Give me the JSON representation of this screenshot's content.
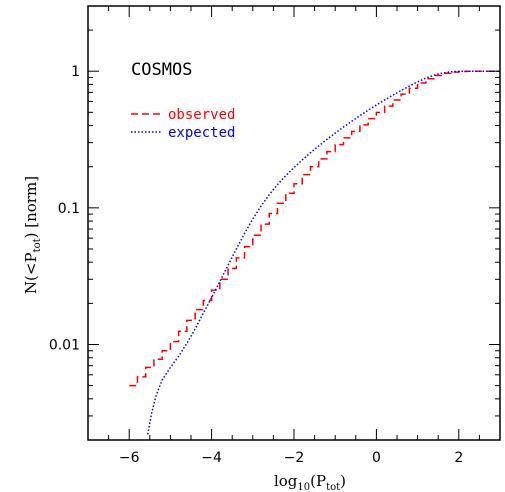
{
  "chart_data": {
    "type": "line",
    "title": "",
    "annotation": "COSMOS",
    "xlabel": {
      "main": "log",
      "sub": "10",
      "open": "(P",
      "sub2": "tot",
      "close": ")"
    },
    "ylabel": {
      "main": "N(<P",
      "sub": "tot",
      "close": ") [norm]"
    },
    "xlim": [
      -7,
      3
    ],
    "ylim": [
      0.002,
      3
    ],
    "yscale": "log",
    "xticks": [
      -6,
      -4,
      -2,
      0,
      2
    ],
    "xtick_labels": [
      "−6",
      "−4",
      "−2",
      "0",
      "2"
    ],
    "yticks": [
      0.01,
      0.1,
      1
    ],
    "ytick_labels": [
      "0.01",
      "0.1",
      "1"
    ],
    "legend_position": "upper-left",
    "series": [
      {
        "name": "observed",
        "color": "#ff0000",
        "style": "dashed-step",
        "x": [
          -6.0,
          -5.8,
          -5.6,
          -5.4,
          -5.2,
          -5.0,
          -4.8,
          -4.6,
          -4.4,
          -4.2,
          -4.0,
          -3.8,
          -3.6,
          -3.4,
          -3.2,
          -3.0,
          -2.8,
          -2.6,
          -2.4,
          -2.2,
          -2.0,
          -1.8,
          -1.6,
          -1.4,
          -1.2,
          -1.0,
          -0.8,
          -0.6,
          -0.4,
          -0.2,
          0.0,
          0.2,
          0.4,
          0.6,
          0.8,
          1.0,
          1.2,
          1.4,
          1.6,
          1.8,
          2.0,
          2.2,
          2.4,
          2.6,
          2.8,
          3.0
        ],
        "y": [
          0.005,
          0.0058,
          0.0068,
          0.0078,
          0.009,
          0.0105,
          0.0125,
          0.015,
          0.018,
          0.021,
          0.025,
          0.03,
          0.036,
          0.043,
          0.052,
          0.063,
          0.076,
          0.091,
          0.108,
          0.128,
          0.15,
          0.175,
          0.2,
          0.228,
          0.258,
          0.29,
          0.325,
          0.363,
          0.405,
          0.45,
          0.5,
          0.555,
          0.615,
          0.68,
          0.75,
          0.82,
          0.88,
          0.93,
          0.965,
          0.985,
          0.995,
          1.0,
          1.0,
          1.0,
          1.0,
          1.0
        ]
      },
      {
        "name": "expected",
        "color": "#0000ff",
        "style": "dotted",
        "x": [
          -5.55,
          -5.45,
          -5.35,
          -5.2,
          -5.0,
          -4.8,
          -4.6,
          -4.4,
          -4.2,
          -4.0,
          -3.8,
          -3.6,
          -3.4,
          -3.2,
          -3.0,
          -2.8,
          -2.6,
          -2.4,
          -2.2,
          -2.0,
          -1.8,
          -1.6,
          -1.4,
          -1.2,
          -1.0,
          -0.8,
          -0.6,
          -0.4,
          -0.2,
          0.0,
          0.2,
          0.4,
          0.6,
          0.8,
          1.0,
          1.2,
          1.4,
          1.6,
          1.8,
          2.0,
          2.2,
          2.4,
          2.6,
          2.8,
          3.0
        ],
        "y": [
          0.0022,
          0.0032,
          0.0042,
          0.0055,
          0.0068,
          0.0082,
          0.0102,
          0.013,
          0.017,
          0.022,
          0.029,
          0.038,
          0.05,
          0.065,
          0.083,
          0.103,
          0.125,
          0.148,
          0.172,
          0.197,
          0.224,
          0.253,
          0.284,
          0.317,
          0.352,
          0.39,
          0.43,
          0.473,
          0.518,
          0.566,
          0.616,
          0.668,
          0.722,
          0.778,
          0.835,
          0.89,
          0.935,
          0.968,
          0.988,
          0.997,
          1.0,
          1.0,
          1.0,
          1.0,
          1.0
        ]
      }
    ]
  }
}
